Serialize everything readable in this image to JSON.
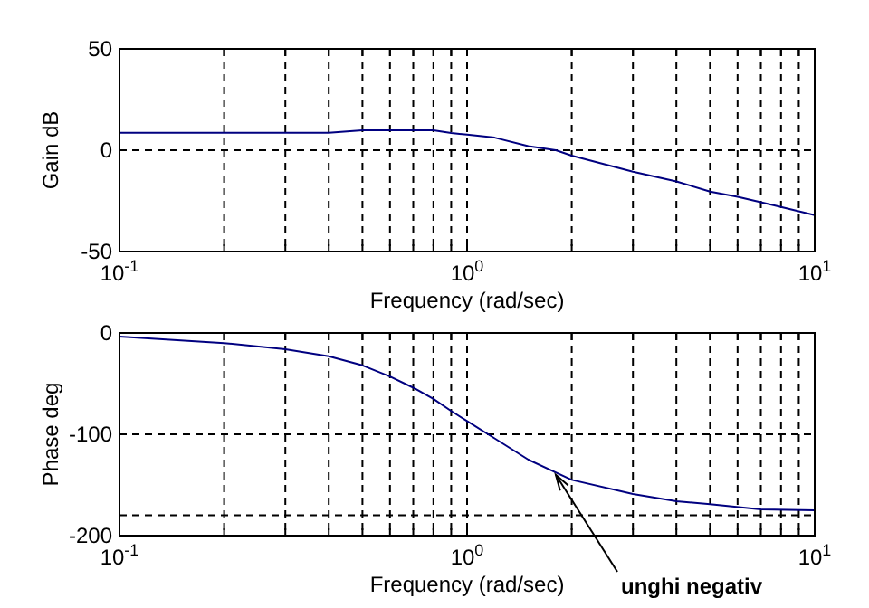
{
  "chart_data": [
    {
      "type": "line",
      "ylabel": "Gain dB",
      "xlabel": "Frequency (rad/sec)",
      "log": "x",
      "grid": true,
      "xlim": [
        0.1,
        10
      ],
      "ylim": [
        -50,
        50
      ],
      "yticks": [
        -50,
        0,
        50
      ],
      "xticks": [
        {
          "value": 0.1,
          "label": "10$^{-1}$"
        },
        {
          "value": 0.2,
          "label": null
        },
        {
          "value": 0.3,
          "label": null
        },
        {
          "value": 0.4,
          "label": null
        },
        {
          "value": 0.5,
          "label": null
        },
        {
          "value": 0.6,
          "label": null
        },
        {
          "value": 0.7,
          "label": null
        },
        {
          "value": 0.8,
          "label": null
        },
        {
          "value": 0.9,
          "label": null
        },
        {
          "value": 1,
          "label": "10$^{0}$"
        },
        {
          "value": 2,
          "label": null
        },
        {
          "value": 3,
          "label": null
        },
        {
          "value": 4,
          "label": null
        },
        {
          "value": 5,
          "label": null
        },
        {
          "value": 6,
          "label": null
        },
        {
          "value": 7,
          "label": null
        },
        {
          "value": 8,
          "label": null
        },
        {
          "value": 9,
          "label": null
        },
        {
          "value": 10,
          "label": "10$^{1}$"
        }
      ],
      "series": [
        {
          "color": "#000080",
          "x": [
            0.1,
            0.2,
            0.3,
            0.4,
            0.5,
            0.6,
            0.7,
            0.8,
            0.9,
            1,
            1.2,
            1.5,
            1.8,
            2,
            3,
            4,
            5,
            6,
            7,
            8,
            10
          ],
          "values": [
            8.6,
            8.6,
            8.6,
            8.6,
            9.8,
            9.8,
            9.8,
            9.8,
            8.5,
            7.7,
            6.2,
            2,
            0,
            -2.7,
            -10.6,
            -15.4,
            -20.4,
            -23,
            -25.7,
            -28,
            -32
          ]
        }
      ]
    },
    {
      "type": "line",
      "ylabel": "Phase deg",
      "xlabel": "Frequency (rad/sec)",
      "log": "x",
      "grid": true,
      "xlim": [
        0.1,
        10
      ],
      "ylim": [
        -200,
        0
      ],
      "yticks": [
        -200,
        -100,
        0
      ],
      "xticks": [
        {
          "value": 0.1,
          "label": "10$^{-1}$"
        },
        {
          "value": 0.2,
          "label": null
        },
        {
          "value": 0.3,
          "label": null
        },
        {
          "value": 0.4,
          "label": null
        },
        {
          "value": 0.5,
          "label": null
        },
        {
          "value": 0.6,
          "label": null
        },
        {
          "value": 0.7,
          "label": null
        },
        {
          "value": 0.8,
          "label": null
        },
        {
          "value": 0.9,
          "label": null
        },
        {
          "value": 1,
          "label": "10$^{0}$"
        },
        {
          "value": 2,
          "label": null
        },
        {
          "value": 3,
          "label": null
        },
        {
          "value": 4,
          "label": null
        },
        {
          "value": 5,
          "label": null
        },
        {
          "value": 6,
          "label": null
        },
        {
          "value": 7,
          "label": null
        },
        {
          "value": 8,
          "label": null
        },
        {
          "value": 9,
          "label": null
        },
        {
          "value": 10,
          "label": "10$^{1}$"
        }
      ],
      "ref_lines": [
        {
          "axis": "y",
          "value": -180,
          "line_style": "dashed"
        }
      ],
      "annotations": [
        {
          "text": "unghi negativ",
          "x": 1.8,
          "y": -140
        }
      ],
      "series": [
        {
          "color": "#000080",
          "x": [
            0.1,
            0.2,
            0.3,
            0.4,
            0.5,
            0.6,
            0.7,
            0.8,
            0.9,
            1,
            1.2,
            1.5,
            2,
            3,
            4,
            5,
            7,
            10
          ],
          "values": [
            -3.6,
            -10,
            -16,
            -23,
            -32,
            -43,
            -54,
            -65,
            -77,
            -87,
            -104,
            -125,
            -145,
            -159,
            -166,
            -169,
            -174,
            -175
          ]
        }
      ]
    }
  ]
}
